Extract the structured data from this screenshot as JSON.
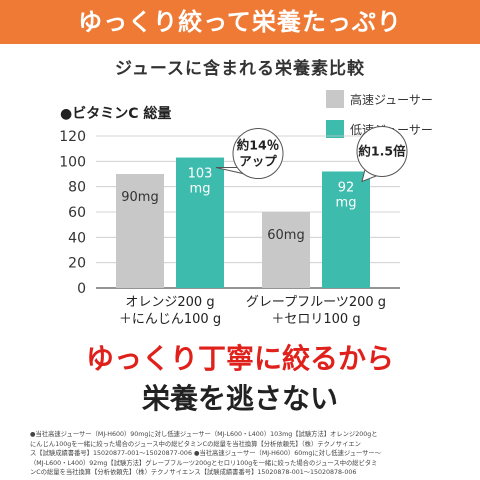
{
  "banner": {
    "text": "ゆっくり絞って栄養たっぷり",
    "bg": "#ee7a35"
  },
  "subtitle": "ジュースに含まれる栄養素比較",
  "metric_label": "●ビタミンC 総量",
  "legend": [
    {
      "label": "高速ジューサー",
      "color": "#c8c8c8"
    },
    {
      "label": "低速ジューサー",
      "color": "#3dbcae"
    }
  ],
  "chart_data": {
    "type": "bar",
    "categories": [
      "オレンジ200 g\n＋にんじん100 g",
      "グレープフルーツ200 g\n＋セロリ100 g"
    ],
    "series": [
      {
        "name": "高速ジューサー",
        "values": [
          90,
          60
        ],
        "labels": [
          "90mg",
          "60mg"
        ],
        "color": "#c8c8c8"
      },
      {
        "name": "低速ジューサー",
        "values": [
          103,
          92
        ],
        "labels": [
          "103\nmg",
          "92\nmg"
        ],
        "color": "#3dbcae"
      }
    ],
    "yticks": [
      0,
      20,
      40,
      60,
      80,
      100,
      120
    ],
    "ylim": [
      0,
      120
    ],
    "grid": true,
    "callouts": [
      {
        "text": "約14％\nアップ",
        "category_index": 0
      },
      {
        "text": "約1.5倍",
        "category_index": 1
      }
    ]
  },
  "headline": {
    "line1": "ゆっくり丁寧に絞るから",
    "line2": "栄養を逃さない",
    "line1_color": "#e0201b"
  },
  "footnote": [
    "●当社高速ジューサー（MJ-H600）90mgに対し低速ジューサー（MJ-L600・L400）103mg【試験方法】オレンジ200gと",
    "にんじん100gを一緒に絞った場合のジュース中の総ビタミンCの総量を当社換算【分析依頼先】（株）テクノサイエン",
    "ス【試験成績書番号】15020877-001〜15020877-006 ●当社高速ジューサー（MJ-H600）60mgに対し低速ジューサー〜",
    "（MJ-L600・L400）92mg【試験方法】グレープフルーツ200gとセロリ100gを一緒に絞った場合のジュース中の総ビタミ",
    "ンCの総量を当社換算【分析依頼先】（株）テクノサイエンス【試験成績書番号】15020878-001〜15020878-006"
  ]
}
